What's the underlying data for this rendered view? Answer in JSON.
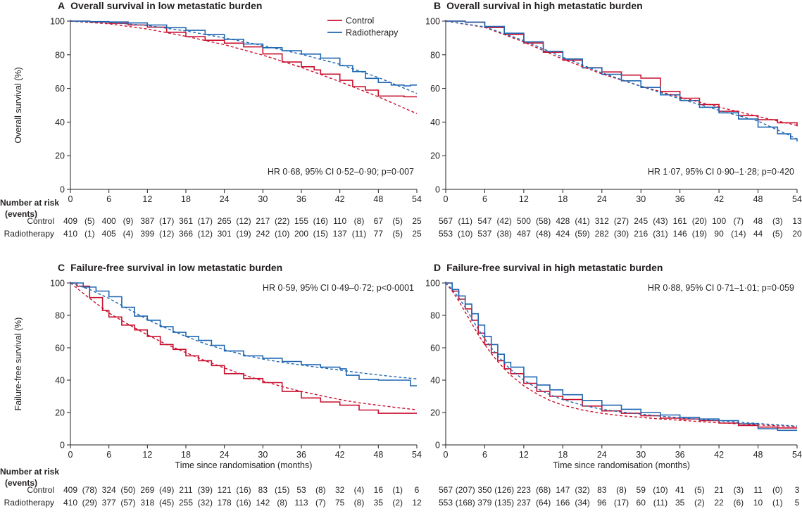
{
  "colors": {
    "control": "#c8102e",
    "radiotherapy": "#1f67b1",
    "axis": "#231f20"
  },
  "legend": {
    "items": [
      {
        "label": "Control",
        "color": "#c8102e"
      },
      {
        "label": "Radiotherapy",
        "color": "#1f67b1"
      }
    ],
    "placement": "top-right of panel A"
  },
  "risk_header": {
    "line1": "Number at risk",
    "line2": "(events)"
  },
  "risk_group_labels": [
    "Control",
    "Radiotherapy"
  ],
  "chart_data": [
    {
      "type": "line",
      "panel": "A",
      "title": "Overall survival in low metastatic burden",
      "ylabel": "Overall survival (%)",
      "xlabel": "",
      "annotation": "HR 0·68, 95% CI 0·52–0·90; p=0·007",
      "xlim": [
        0,
        54
      ],
      "ylim": [
        0,
        100
      ],
      "xticks": [
        "0",
        "6",
        "12",
        "18",
        "24",
        "30",
        "36",
        "42",
        "48",
        "54"
      ],
      "yticks": [
        "0",
        "20",
        "40",
        "60",
        "80",
        "100"
      ],
      "series": [
        {
          "name": "Control",
          "style": "step",
          "x": [
            0,
            3,
            6,
            9,
            12,
            15,
            18,
            21,
            24,
            27,
            30,
            33,
            36,
            38,
            39,
            42,
            44,
            46,
            48,
            52,
            54
          ],
          "y": [
            100,
            99.4,
            98.7,
            97.7,
            96.4,
            93.4,
            90.8,
            88.6,
            86.9,
            84.7,
            80.5,
            75.7,
            72.9,
            71,
            68.5,
            64.8,
            61,
            59,
            55.5,
            55,
            55
          ]
        },
        {
          "name": "Radiotherapy",
          "style": "step",
          "x": [
            0,
            3,
            6,
            9,
            12,
            15,
            18,
            21,
            24,
            27,
            30,
            33,
            36,
            39,
            42,
            44,
            46,
            48,
            50,
            52,
            53,
            54
          ],
          "y": [
            100,
            99.7,
            99.5,
            98.9,
            97.7,
            96.1,
            94.5,
            92,
            89.2,
            86.4,
            84.2,
            82.4,
            80.4,
            78,
            73.5,
            70,
            66,
            63.5,
            62,
            61.5,
            62,
            62
          ]
        },
        {
          "name": "Control",
          "style": "fitted",
          "x": [
            0,
            6,
            12,
            18,
            24,
            30,
            36,
            42,
            48,
            54
          ],
          "y": [
            100,
            98.4,
            95.3,
            91,
            86,
            79.8,
            72.5,
            64,
            55,
            45
          ]
        },
        {
          "name": "Radiotherapy",
          "style": "fitted",
          "x": [
            0,
            6,
            12,
            18,
            24,
            30,
            36,
            42,
            48,
            54
          ],
          "y": [
            100,
            99.2,
            97.4,
            94.2,
            90,
            85.5,
            80.3,
            74.3,
            66.5,
            57
          ]
        }
      ],
      "risk_table": [
        {
          "group": "Control",
          "at_risk": [
            "409",
            "400",
            "387",
            "361",
            "265",
            "217",
            "155",
            "110",
            "67",
            "25"
          ],
          "events": [
            "(5)",
            "(9)",
            "(17)",
            "(17)",
            "(12)",
            "(22)",
            "(16)",
            "(8)",
            "(5)"
          ]
        },
        {
          "group": "Radiotherapy",
          "at_risk": [
            "410",
            "405",
            "399",
            "366",
            "301",
            "242",
            "200",
            "137",
            "77",
            "25"
          ],
          "events": [
            "(1)",
            "(4)",
            "(12)",
            "(12)",
            "(19)",
            "(10)",
            "(15)",
            "(11)",
            "(5)"
          ]
        }
      ]
    },
    {
      "type": "line",
      "panel": "B",
      "title": "Overall survival in high metastatic burden",
      "ylabel": "",
      "xlabel": "",
      "annotation": "HR 1·07, 95% CI 0·90–1·28; p=0·420",
      "xlim": [
        0,
        54
      ],
      "ylim": [
        0,
        100
      ],
      "xticks": [
        "0",
        "6",
        "12",
        "18",
        "24",
        "30",
        "36",
        "42",
        "48",
        "54"
      ],
      "yticks": [
        "0",
        "20",
        "40",
        "60",
        "80",
        "100"
      ],
      "series": [
        {
          "name": "Control",
          "style": "step",
          "x": [
            0,
            3,
            6,
            9,
            12,
            15,
            18,
            21,
            24,
            27,
            30,
            33,
            36,
            39,
            42,
            45,
            48,
            51,
            54
          ],
          "y": [
            100,
            99.3,
            96.2,
            92,
            87,
            81.5,
            76.8,
            72.3,
            69.8,
            67.9,
            66.1,
            58.1,
            54.2,
            50.4,
            46.4,
            43.8,
            41.4,
            39.6,
            37.5
          ]
        },
        {
          "name": "Radiotherapy",
          "style": "step",
          "x": [
            0,
            3,
            6,
            9,
            12,
            15,
            18,
            21,
            24,
            27,
            30,
            33,
            36,
            39,
            42,
            45,
            48,
            51,
            53,
            54
          ],
          "y": [
            100,
            99.4,
            96.8,
            92.8,
            87.7,
            82,
            77.5,
            72.2,
            68.4,
            64.5,
            60.6,
            56.2,
            52.8,
            48.8,
            45.5,
            41.8,
            37,
            33,
            30,
            28.5
          ]
        },
        {
          "name": "Control",
          "style": "fitted",
          "x": [
            0,
            6,
            12,
            18,
            24,
            30,
            36,
            42,
            48,
            54
          ],
          "y": [
            100,
            96.3,
            87.6,
            77.4,
            68.6,
            61.4,
            54.8,
            48.9,
            43.3,
            38
          ]
        },
        {
          "name": "Radiotherapy",
          "style": "fitted",
          "x": [
            0,
            6,
            12,
            18,
            24,
            30,
            36,
            42,
            48,
            54
          ],
          "y": [
            100,
            96.6,
            88.4,
            78.6,
            69.3,
            61.2,
            53.8,
            47,
            40.6,
            30
          ]
        }
      ],
      "risk_table": [
        {
          "group": "Control",
          "at_risk": [
            "567",
            "547",
            "500",
            "428",
            "312",
            "245",
            "161",
            "100",
            "48",
            "13"
          ],
          "events": [
            "(11)",
            "(42)",
            "(58)",
            "(41)",
            "(27)",
            "(43)",
            "(20)",
            "(7)",
            "(3)"
          ]
        },
        {
          "group": "Radiotherapy",
          "at_risk": [
            "553",
            "537",
            "487",
            "424",
            "282",
            "216",
            "146",
            "90",
            "44",
            "20"
          ],
          "events": [
            "(10)",
            "(38)",
            "(48)",
            "(59)",
            "(30)",
            "(31)",
            "(19)",
            "(14)",
            "(5)"
          ]
        }
      ]
    },
    {
      "type": "line",
      "panel": "C",
      "title": "Failure-free survival in low metastatic burden",
      "ylabel": "Failure-free survival (%)",
      "xlabel": "Time since randomisation (months)",
      "annotation": "HR 0·59, 95% CI 0·49–0·72; p<0·0001",
      "xlim": [
        0,
        54
      ],
      "ylim": [
        0,
        100
      ],
      "xticks": [
        "0",
        "6",
        "12",
        "18",
        "24",
        "30",
        "36",
        "42",
        "48",
        "54"
      ],
      "yticks": [
        "0",
        "20",
        "40",
        "60",
        "80",
        "100"
      ],
      "series": [
        {
          "name": "Control",
          "style": "step",
          "x": [
            0,
            1,
            3,
            5,
            6,
            8,
            10,
            12,
            14,
            16,
            18,
            20,
            22,
            24,
            27,
            30,
            33,
            36,
            39,
            42,
            45,
            48,
            51,
            54
          ],
          "y": [
            100,
            98,
            91,
            83,
            79,
            74,
            71,
            67,
            62,
            59,
            55,
            52,
            49,
            44,
            41,
            38.5,
            33,
            29,
            26.5,
            24.5,
            21.5,
            19.5,
            19.5,
            19.5
          ]
        },
        {
          "name": "Radiotherapy",
          "style": "step",
          "x": [
            0,
            2,
            4,
            6,
            8,
            10,
            12,
            14,
            16,
            18,
            20,
            22,
            24,
            27,
            30,
            33,
            36,
            39,
            42,
            43,
            45,
            48,
            51,
            53,
            54
          ],
          "y": [
            100,
            97.5,
            95,
            91.5,
            85,
            79.5,
            77,
            73,
            69.5,
            67,
            64.5,
            61.5,
            58,
            55,
            53.5,
            51.5,
            49.5,
            48,
            47,
            43,
            40.5,
            40,
            40,
            36.5,
            36.5
          ]
        },
        {
          "name": "Control",
          "style": "fitted",
          "x": [
            0,
            3,
            6,
            9,
            12,
            15,
            18,
            21,
            24,
            27,
            30,
            33,
            36,
            39,
            42,
            45,
            48,
            51,
            54
          ],
          "y": [
            100,
            90.5,
            81.5,
            74.5,
            68,
            62,
            57,
            52,
            47.5,
            43.3,
            39.5,
            36,
            33,
            30.5,
            28,
            26,
            24.5,
            23,
            21.7
          ]
        },
        {
          "name": "Radiotherapy",
          "style": "fitted",
          "x": [
            0,
            3,
            6,
            9,
            12,
            15,
            18,
            21,
            24,
            27,
            30,
            33,
            36,
            39,
            42,
            45,
            48,
            51,
            54
          ],
          "y": [
            100,
            96,
            90.5,
            84,
            77.5,
            72,
            67,
            62.5,
            58.8,
            55.6,
            53,
            51,
            49.3,
            47.7,
            46.2,
            44.6,
            43.2,
            41.9,
            40.8
          ]
        }
      ],
      "risk_table": [
        {
          "group": "Control",
          "at_risk": [
            "409",
            "324",
            "269",
            "211",
            "121",
            "83",
            "53",
            "32",
            "16",
            "6"
          ],
          "events": [
            "(78)",
            "(50)",
            "(49)",
            "(39)",
            "(16)",
            "(15)",
            "(8)",
            "(4)",
            "(1)"
          ]
        },
        {
          "group": "Radiotherapy",
          "at_risk": [
            "410",
            "377",
            "318",
            "255",
            "178",
            "142",
            "113",
            "75",
            "35",
            "12"
          ],
          "events": [
            "(29)",
            "(57)",
            "(45)",
            "(32)",
            "(16)",
            "(8)",
            "(7)",
            "(8)",
            "(2)"
          ]
        }
      ]
    },
    {
      "type": "line",
      "panel": "D",
      "title": "Failure-free survival in high metastatic burden",
      "ylabel": "",
      "xlabel": "Time since randomisation (months)",
      "annotation": "HR 0·88, 95% CI 0·71–1·01; p=0·059",
      "xlim": [
        0,
        54
      ],
      "ylim": [
        0,
        100
      ],
      "xticks": [
        "0",
        "6",
        "12",
        "18",
        "24",
        "30",
        "36",
        "42",
        "48",
        "54"
      ],
      "yticks": [
        "0",
        "20",
        "40",
        "60",
        "80",
        "100"
      ],
      "series": [
        {
          "name": "Control",
          "style": "step",
          "x": [
            0,
            1,
            2,
            3,
            4,
            5,
            6,
            7,
            8,
            9,
            10,
            12,
            14,
            16,
            18,
            21,
            24,
            27,
            30,
            33,
            36,
            39,
            42,
            45,
            48,
            51,
            54
          ],
          "y": [
            100,
            95,
            90,
            84,
            77,
            69,
            62,
            57,
            52,
            47,
            44,
            38,
            33,
            30,
            28,
            24,
            21,
            19.5,
            18,
            16.5,
            16,
            15,
            13.5,
            12,
            11,
            10.5,
            10.5
          ]
        },
        {
          "name": "Radiotherapy",
          "style": "step",
          "x": [
            0,
            1,
            2,
            3,
            4,
            5,
            6,
            7,
            8,
            9,
            10,
            12,
            14,
            16,
            18,
            21,
            24,
            27,
            30,
            33,
            36,
            39,
            42,
            45,
            48,
            51,
            54
          ],
          "y": [
            100,
            96,
            92,
            87,
            81,
            74,
            67,
            62,
            56,
            51,
            48,
            42,
            37,
            34,
            31,
            27.5,
            24.5,
            22,
            20,
            18.5,
            17,
            16,
            15,
            13,
            10,
            9,
            9
          ]
        },
        {
          "name": "Control",
          "style": "fitted",
          "x": [
            0,
            1,
            2,
            3,
            4,
            5,
            6,
            7,
            8,
            9,
            10,
            12,
            14,
            16,
            18,
            21,
            24,
            27,
            30,
            33,
            36,
            39,
            42,
            45,
            48,
            51,
            54
          ],
          "y": [
            100,
            95,
            89,
            82,
            75,
            68,
            62,
            56.5,
            51.5,
            47,
            43,
            36.5,
            31.5,
            27.5,
            24.5,
            21.5,
            19.5,
            18,
            17,
            16,
            15.2,
            14.4,
            13.7,
            13,
            12.4,
            11.8,
            11.3
          ]
        },
        {
          "name": "Radiotherapy",
          "style": "fitted",
          "x": [
            0,
            1,
            2,
            3,
            4,
            5,
            6,
            7,
            8,
            9,
            10,
            12,
            14,
            16,
            18,
            21,
            24,
            27,
            30,
            33,
            36,
            39,
            42,
            45,
            48,
            51,
            54
          ],
          "y": [
            100,
            96,
            91,
            85,
            78,
            71.5,
            65.5,
            60,
            55,
            50.5,
            46.5,
            40,
            35,
            31,
            28,
            24.5,
            22,
            20.3,
            19,
            17.8,
            16.8,
            15.8,
            14.9,
            14,
            13.2,
            12.4,
            11.6
          ]
        }
      ],
      "risk_table": [
        {
          "group": "Control",
          "at_risk": [
            "567",
            "350",
            "223",
            "147",
            "83",
            "59",
            "41",
            "21",
            "11",
            "3"
          ],
          "events": [
            "(207)",
            "(126)",
            "(68)",
            "(32)",
            "(8)",
            "(10)",
            "(5)",
            "(3)",
            "(0)"
          ]
        },
        {
          "group": "Radiotherapy",
          "at_risk": [
            "553",
            "379",
            "237",
            "166",
            "96",
            "60",
            "35",
            "22",
            "10",
            "5"
          ],
          "events": [
            "(168)",
            "(135)",
            "(64)",
            "(34)",
            "(17)",
            "(11)",
            "(2)",
            "(6)",
            "(1)"
          ]
        }
      ]
    }
  ]
}
